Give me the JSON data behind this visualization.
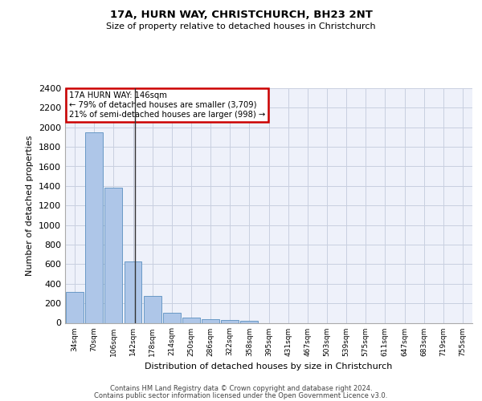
{
  "title1": "17A, HURN WAY, CHRISTCHURCH, BH23 2NT",
  "title2": "Size of property relative to detached houses in Christchurch",
  "xlabel": "Distribution of detached houses by size in Christchurch",
  "ylabel": "Number of detached properties",
  "categories": [
    "34sqm",
    "70sqm",
    "106sqm",
    "142sqm",
    "178sqm",
    "214sqm",
    "250sqm",
    "286sqm",
    "322sqm",
    "358sqm",
    "395sqm",
    "431sqm",
    "467sqm",
    "503sqm",
    "539sqm",
    "575sqm",
    "611sqm",
    "647sqm",
    "683sqm",
    "719sqm",
    "755sqm"
  ],
  "values": [
    315,
    1950,
    1380,
    630,
    275,
    100,
    50,
    35,
    28,
    22,
    0,
    0,
    0,
    0,
    0,
    0,
    0,
    0,
    0,
    0,
    0
  ],
  "bar_color": "#aec6e8",
  "bar_edge_color": "#5a8fc0",
  "annotation_line1": "17A HURN WAY: 146sqm",
  "annotation_line2": "← 79% of detached houses are smaller (3,709)",
  "annotation_line3": "21% of semi-detached houses are larger (998) →",
  "annotation_box_color": "#ffffff",
  "annotation_box_edge": "#cc0000",
  "vline_color": "#333333",
  "ylim": [
    0,
    2400
  ],
  "yticks": [
    0,
    200,
    400,
    600,
    800,
    1000,
    1200,
    1400,
    1600,
    1800,
    2000,
    2200,
    2400
  ],
  "grid_color": "#c8cfe0",
  "bg_color": "#eef1fa",
  "footer1": "Contains HM Land Registry data © Crown copyright and database right 2024.",
  "footer2": "Contains public sector information licensed under the Open Government Licence v3.0."
}
